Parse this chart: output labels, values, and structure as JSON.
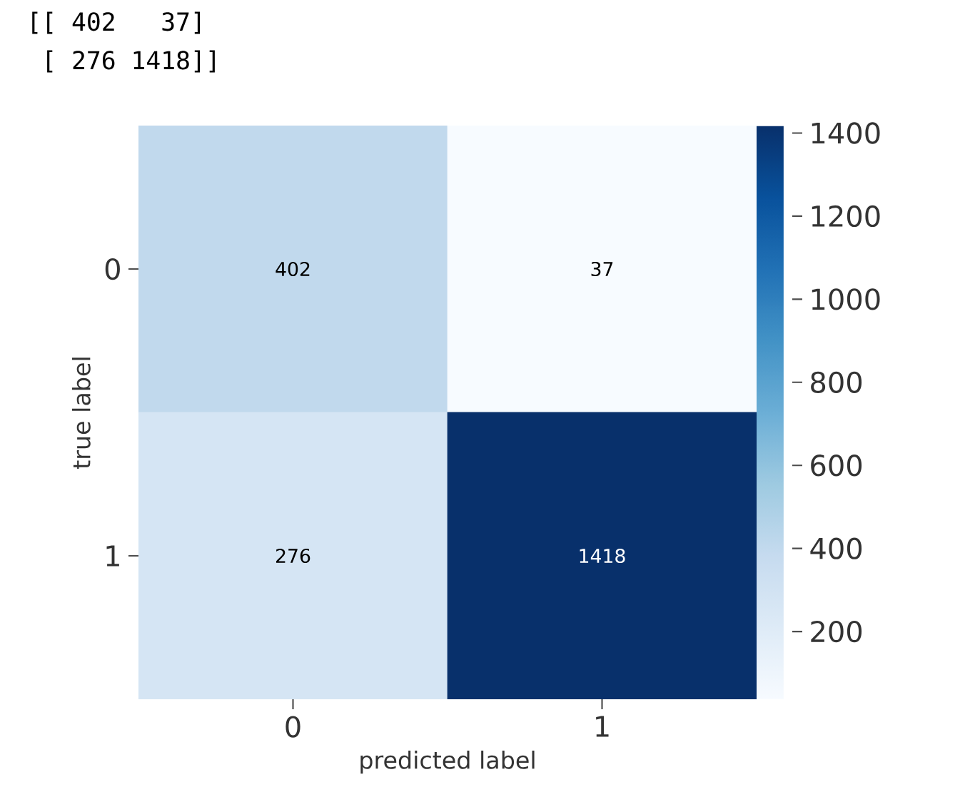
{
  "chart_data": {
    "type": "heatmap",
    "categories": [
      "0",
      "1"
    ],
    "y_categories": [
      "0",
      "1"
    ],
    "cells": [
      [
        402,
        37
      ],
      [
        276,
        1418
      ]
    ],
    "data_labels": true,
    "clim": [
      37,
      1418
    ],
    "cticks": [
      200,
      400,
      600,
      800,
      1000,
      1200,
      1400
    ],
    "xlabel": "predicted label",
    "ylabel": "true label",
    "annotations": [
      "[[ 402   37]",
      " [ 276 1418]]"
    ]
  }
}
